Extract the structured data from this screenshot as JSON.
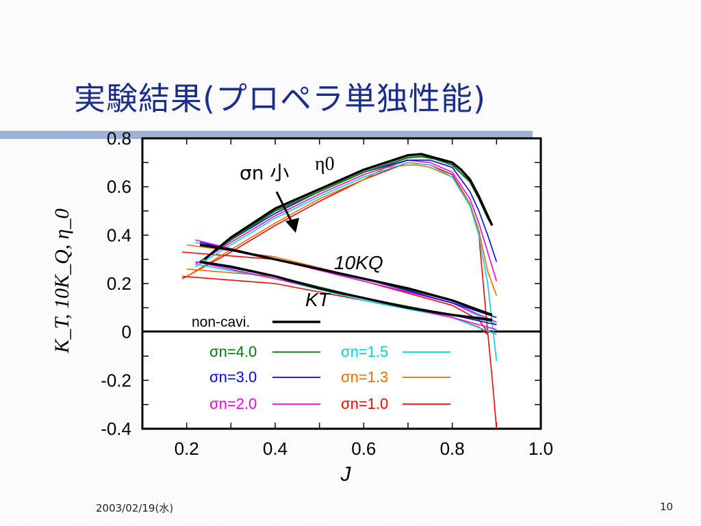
{
  "slide": {
    "title": "実験結果(プロペラ単独性能)",
    "footer_date": "2003/02/19(水)",
    "page_number": "10"
  },
  "chart_data": {
    "type": "line",
    "xlabel": "J",
    "ylabel": "K_T, 10K_Q, η_0",
    "xlim": [
      0.1,
      1.0
    ],
    "ylim": [
      -0.4,
      0.8
    ],
    "x_ticks": [
      "0.2",
      "0.4",
      "0.6",
      "0.8",
      "1.0"
    ],
    "y_ticks": [
      "0.8",
      "0.6",
      "0.4",
      "0.2",
      "0",
      "-0.2",
      "-0.4"
    ],
    "grid": false,
    "annotations": {
      "eta0": "η0",
      "sigma_small": "σn 小",
      "ten_kq": "10KQ",
      "kt": "KT"
    },
    "legend": [
      {
        "label": "non-cavi.",
        "color": "#000000"
      },
      {
        "label": "σn=4.0",
        "color": "#007a00"
      },
      {
        "label": "σn=3.0",
        "color": "#0000ff"
      },
      {
        "label": "σn=2.0",
        "color": "#ee00ee"
      },
      {
        "label": "σn=1.5",
        "color": "#00d4d4"
      },
      {
        "label": "σn=1.3",
        "color": "#ee6a00"
      },
      {
        "label": "σn=1.0",
        "color": "#ff0000"
      }
    ],
    "series": [
      {
        "name": "non-cavi.",
        "color": "#000000",
        "width": 3.5,
        "curves": [
          [
            [
              0.24,
              0.3
            ],
            [
              0.3,
              0.39
            ],
            [
              0.4,
              0.51
            ],
            [
              0.5,
              0.59
            ],
            [
              0.55,
              0.63
            ],
            [
              0.6,
              0.67
            ],
            [
              0.65,
              0.7
            ],
            [
              0.7,
              0.73
            ],
            [
              0.73,
              0.735
            ],
            [
              0.76,
              0.72
            ],
            [
              0.8,
              0.7
            ],
            [
              0.82,
              0.67
            ],
            [
              0.84,
              0.63
            ],
            [
              0.86,
              0.56
            ],
            [
              0.88,
              0.48
            ],
            [
              0.89,
              0.44
            ]
          ],
          [
            [
              0.23,
              0.36
            ],
            [
              0.3,
              0.34
            ],
            [
              0.4,
              0.3
            ],
            [
              0.5,
              0.26
            ],
            [
              0.6,
              0.22
            ],
            [
              0.7,
              0.18
            ],
            [
              0.8,
              0.13
            ],
            [
              0.89,
              0.07
            ]
          ],
          [
            [
              0.23,
              0.29
            ],
            [
              0.3,
              0.27
            ],
            [
              0.4,
              0.23
            ],
            [
              0.5,
              0.18
            ],
            [
              0.6,
              0.14
            ],
            [
              0.7,
              0.1
            ],
            [
              0.8,
              0.07
            ],
            [
              0.89,
              0.05
            ]
          ]
        ]
      },
      {
        "name": "σn=4.0",
        "color": "#007a00",
        "width": 2.2,
        "curves": [
          [
            [
              0.23,
              0.29
            ],
            [
              0.3,
              0.38
            ],
            [
              0.4,
              0.5
            ],
            [
              0.5,
              0.58
            ],
            [
              0.6,
              0.66
            ],
            [
              0.65,
              0.69
            ],
            [
              0.7,
              0.72
            ],
            [
              0.73,
              0.725
            ],
            [
              0.76,
              0.715
            ],
            [
              0.8,
              0.69
            ],
            [
              0.84,
              0.62
            ],
            [
              0.86,
              0.55
            ],
            [
              0.88,
              0.47
            ],
            [
              0.89,
              0.44
            ]
          ],
          [
            [
              0.24,
              0.36
            ],
            [
              0.4,
              0.3
            ],
            [
              0.6,
              0.22
            ],
            [
              0.8,
              0.13
            ],
            [
              0.89,
              0.07
            ]
          ],
          [
            [
              0.24,
              0.29
            ],
            [
              0.4,
              0.23
            ],
            [
              0.6,
              0.14
            ],
            [
              0.8,
              0.07
            ],
            [
              0.89,
              0.045
            ]
          ]
        ]
      },
      {
        "name": "σn=3.0",
        "color": "#0000ff",
        "width": 1.6,
        "curves": [
          [
            [
              0.23,
              0.29
            ],
            [
              0.3,
              0.38
            ],
            [
              0.4,
              0.49
            ],
            [
              0.5,
              0.58
            ],
            [
              0.6,
              0.66
            ],
            [
              0.7,
              0.71
            ],
            [
              0.75,
              0.71
            ],
            [
              0.8,
              0.68
            ],
            [
              0.84,
              0.58
            ],
            [
              0.86,
              0.5
            ],
            [
              0.88,
              0.4
            ],
            [
              0.9,
              0.29
            ]
          ],
          [
            [
              0.23,
              0.37
            ],
            [
              0.4,
              0.3
            ],
            [
              0.6,
              0.22
            ],
            [
              0.8,
              0.12
            ],
            [
              0.9,
              0.06
            ]
          ],
          [
            [
              0.23,
              0.29
            ],
            [
              0.4,
              0.23
            ],
            [
              0.6,
              0.14
            ],
            [
              0.8,
              0.07
            ],
            [
              0.9,
              0.03
            ]
          ]
        ]
      },
      {
        "name": "σn=2.0",
        "color": "#ee00ee",
        "width": 1.6,
        "curves": [
          [
            [
              0.22,
              0.28
            ],
            [
              0.3,
              0.37
            ],
            [
              0.4,
              0.48
            ],
            [
              0.5,
              0.57
            ],
            [
              0.6,
              0.65
            ],
            [
              0.7,
              0.71
            ],
            [
              0.75,
              0.7
            ],
            [
              0.8,
              0.66
            ],
            [
              0.84,
              0.55
            ],
            [
              0.86,
              0.45
            ],
            [
              0.88,
              0.33
            ],
            [
              0.9,
              0.21
            ]
          ],
          [
            [
              0.22,
              0.38
            ],
            [
              0.4,
              0.3
            ],
            [
              0.6,
              0.21
            ],
            [
              0.8,
              0.12
            ],
            [
              0.9,
              0.04
            ]
          ],
          [
            [
              0.22,
              0.29
            ],
            [
              0.4,
              0.22
            ],
            [
              0.6,
              0.14
            ],
            [
              0.8,
              0.06
            ],
            [
              0.9,
              0.01
            ]
          ]
        ]
      },
      {
        "name": "σn=1.5",
        "color": "#00d4d4",
        "width": 1.6,
        "curves": [
          [
            [
              0.22,
              0.27
            ],
            [
              0.3,
              0.36
            ],
            [
              0.4,
              0.47
            ],
            [
              0.5,
              0.56
            ],
            [
              0.6,
              0.64
            ],
            [
              0.7,
              0.7
            ],
            [
              0.75,
              0.69
            ],
            [
              0.8,
              0.64
            ],
            [
              0.84,
              0.52
            ],
            [
              0.86,
              0.4
            ],
            [
              0.88,
              0.2
            ],
            [
              0.9,
              -0.12
            ]
          ],
          [
            [
              0.22,
              0.37
            ],
            [
              0.4,
              0.3
            ],
            [
              0.6,
              0.21
            ],
            [
              0.8,
              0.12
            ],
            [
              0.9,
              0.03
            ]
          ],
          [
            [
              0.22,
              0.28
            ],
            [
              0.4,
              0.22
            ],
            [
              0.6,
              0.13
            ],
            [
              0.8,
              0.06
            ],
            [
              0.9,
              -0.01
            ]
          ]
        ]
      },
      {
        "name": "σn=1.3",
        "color": "#ee6a00",
        "width": 1.6,
        "curves": [
          [
            [
              0.2,
              0.23
            ],
            [
              0.3,
              0.34
            ],
            [
              0.4,
              0.45
            ],
            [
              0.5,
              0.55
            ],
            [
              0.6,
              0.63
            ],
            [
              0.65,
              0.68
            ],
            [
              0.7,
              0.69
            ],
            [
              0.72,
              0.69
            ],
            [
              0.75,
              0.68
            ],
            [
              0.8,
              0.64
            ],
            [
              0.84,
              0.53
            ],
            [
              0.86,
              0.42
            ],
            [
              0.88,
              0.25
            ],
            [
              0.9,
              0.15
            ]
          ],
          [
            [
              0.2,
              0.36
            ],
            [
              0.4,
              0.31
            ],
            [
              0.6,
              0.22
            ],
            [
              0.8,
              0.12
            ],
            [
              0.9,
              0.03
            ]
          ],
          [
            [
              0.2,
              0.26
            ],
            [
              0.4,
              0.23
            ],
            [
              0.6,
              0.14
            ],
            [
              0.8,
              0.06
            ],
            [
              0.9,
              -0.01
            ]
          ]
        ]
      },
      {
        "name": "σn=1.0",
        "color": "#ff0000",
        "width": 1.6,
        "curves": [
          [
            [
              0.19,
              0.22
            ],
            [
              0.3,
              0.33
            ],
            [
              0.4,
              0.44
            ],
            [
              0.5,
              0.54
            ],
            [
              0.6,
              0.63
            ],
            [
              0.7,
              0.7
            ],
            [
              0.75,
              0.69
            ],
            [
              0.8,
              0.65
            ],
            [
              0.84,
              0.53
            ],
            [
              0.86,
              0.4
            ],
            [
              0.87,
              0.2
            ],
            [
              0.88,
              0.0
            ],
            [
              0.89,
              -0.19
            ],
            [
              0.9,
              -0.4
            ]
          ],
          [
            [
              0.19,
              0.33
            ],
            [
              0.4,
              0.3
            ],
            [
              0.6,
              0.21
            ],
            [
              0.8,
              0.11
            ],
            [
              0.86,
              0.05
            ],
            [
              0.88,
              0.0
            ]
          ],
          [
            [
              0.19,
              0.23
            ],
            [
              0.4,
              0.2
            ],
            [
              0.6,
              0.13
            ],
            [
              0.8,
              0.06
            ],
            [
              0.86,
              0.02
            ],
            [
              0.88,
              -0.01
            ]
          ]
        ]
      }
    ]
  }
}
